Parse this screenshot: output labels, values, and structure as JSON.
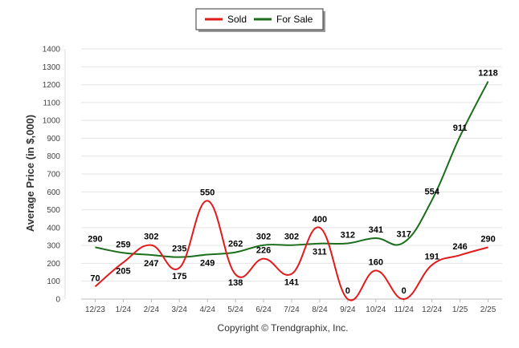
{
  "chart_data": {
    "type": "line",
    "categories": [
      "12/23",
      "1/24",
      "2/24",
      "3/24",
      "4/24",
      "5/24",
      "6/24",
      "7/24",
      "8/24",
      "9/24",
      "10/24",
      "11/24",
      "12/24",
      "1/25",
      "2/25"
    ],
    "series": [
      {
        "name": "Sold",
        "color": "#e31a1c",
        "values": [
          70,
          205,
          302,
          175,
          550,
          138,
          226,
          141,
          400,
          0,
          160,
          0,
          191,
          246,
          290
        ]
      },
      {
        "name": "For Sale",
        "color": "#1b6e1b",
        "values": [
          290,
          259,
          247,
          235,
          249,
          262,
          302,
          302,
          311,
          312,
          341,
          317,
          554,
          911,
          1218
        ]
      }
    ],
    "ylabel": "Average Price (in $,000)",
    "xlabel": "",
    "ylim": [
      0,
      1400
    ],
    "yticks": [
      0,
      100,
      200,
      300,
      400,
      500,
      600,
      700,
      800,
      900,
      1000,
      1100,
      1200,
      1300,
      1400
    ],
    "grid": true,
    "legend_position": "top-center",
    "data_labels": true
  },
  "footer": {
    "copyright": "Copyright © Trendgraphix, Inc."
  }
}
